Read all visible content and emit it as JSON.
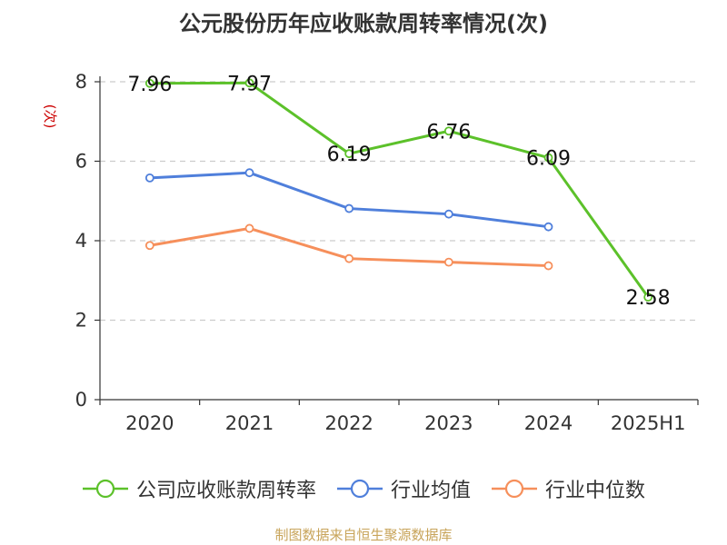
{
  "title": "公元股份历年应收账款周转率情况(次)",
  "source": "制图数据来自恒生聚源数据库",
  "colors": {
    "company": "#5cc12a",
    "industry_avg": "#4f7fdb",
    "industry_median": "#f68f5b",
    "grid": "#cccccc",
    "axis": "#333333",
    "ylabel": "#cc0000",
    "source": "#c8a45a"
  },
  "chart_data": {
    "type": "line",
    "title": "公元股份历年应收账款周转率情况(次)",
    "xlabel": "",
    "ylabel": "(次)",
    "categories": [
      "2020",
      "2021",
      "2022",
      "2023",
      "2024",
      "2025H1"
    ],
    "ylim": [
      0,
      8
    ],
    "yticks": [
      0,
      2,
      4,
      6,
      8
    ],
    "grid": true,
    "legend_position": "bottom",
    "series": [
      {
        "name": "公司应收账款周转率",
        "values": [
          7.96,
          7.97,
          6.19,
          6.76,
          6.09,
          2.58
        ],
        "labels": [
          "7.96",
          "7.97",
          "6.19",
          "6.76",
          "6.09",
          "2.58"
        ]
      },
      {
        "name": "行业均值",
        "values": [
          5.58,
          5.71,
          4.81,
          4.67,
          4.35,
          null
        ]
      },
      {
        "name": "行业中位数",
        "values": [
          3.88,
          4.31,
          3.55,
          3.46,
          3.37,
          null
        ]
      }
    ]
  }
}
